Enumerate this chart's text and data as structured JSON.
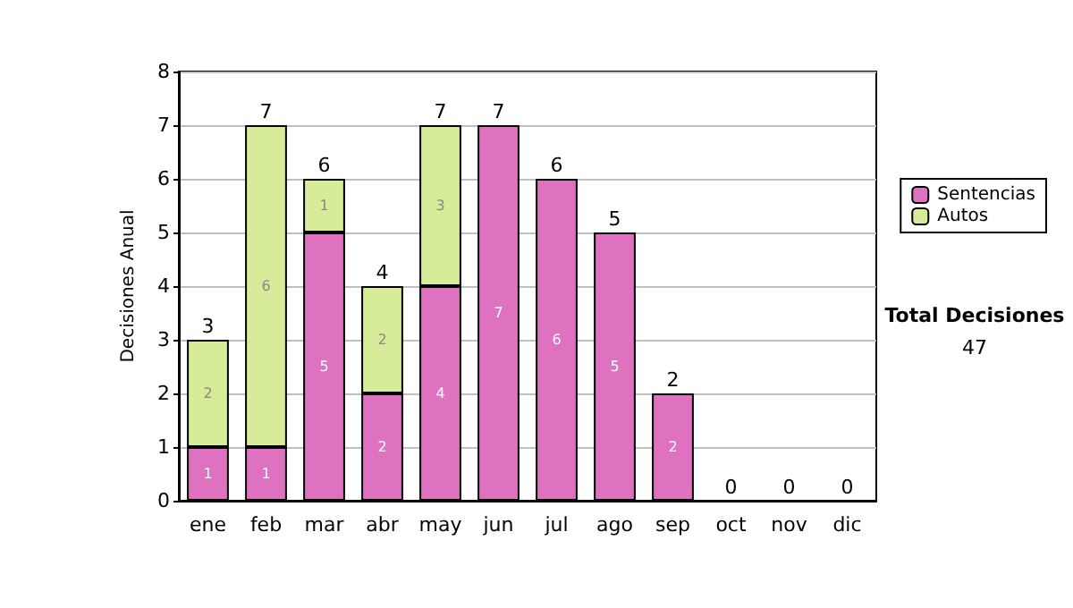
{
  "chart_data": {
    "type": "bar",
    "stacked": true,
    "ylabel": "Decisiones Anual",
    "categories": [
      "ene",
      "feb",
      "mar",
      "abr",
      "may",
      "jun",
      "jul",
      "ago",
      "sep",
      "oct",
      "nov",
      "dic"
    ],
    "series": [
      {
        "name": "Sentencias",
        "color": "#de72c0",
        "values": [
          1,
          1,
          5,
          2,
          4,
          7,
          6,
          5,
          2,
          0,
          0,
          0
        ],
        "value_labels": [
          "1",
          "1",
          "5",
          "2",
          "4",
          "7",
          "6",
          "5",
          "2",
          null,
          null,
          null
        ]
      },
      {
        "name": "Autos",
        "color": "#d6ec98",
        "values": [
          2,
          6,
          1,
          2,
          3,
          0,
          0,
          0,
          0,
          0,
          0,
          0
        ],
        "value_labels": [
          "2",
          "6",
          "1",
          "2",
          "3",
          null,
          null,
          null,
          null,
          null,
          null,
          null
        ]
      }
    ],
    "totals": [
      "3",
      "7",
      "6",
      "4",
      "7",
      "7",
      "6",
      "5",
      "2",
      "0",
      "0",
      "0"
    ],
    "ylim": [
      0,
      8
    ],
    "yticks": [
      0,
      1,
      2,
      3,
      4,
      5,
      6,
      7,
      8
    ],
    "grid": "y",
    "legend": "right",
    "annotations": [
      "Total Decisiones",
      "47"
    ]
  }
}
